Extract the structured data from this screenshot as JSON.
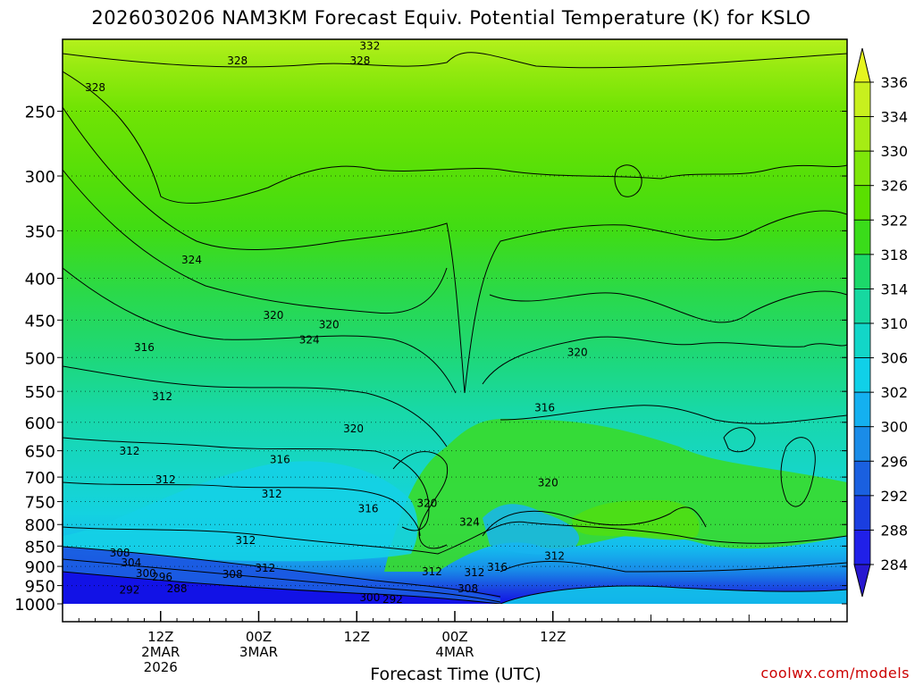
{
  "title": "2026030206 NAM3KM Forecast Equiv. Potential Temperature (K) for KSLO",
  "xlabel": "Forecast Time (UTC)",
  "credit": "coolwx.com/models",
  "colors": {
    "frame": "#000000",
    "ground": "#a0522d",
    "contour": "#000000",
    "grid": "#000000"
  },
  "chart_data": {
    "type": "heatmap",
    "title": "2026030206 NAM3KM Forecast Equiv. Potential Temperature (K) for KSLO",
    "xlabel": "Forecast Time (UTC)",
    "ylabel": "",
    "y_scale": "log-pressure",
    "y_range": [
      1000,
      200
    ],
    "y_ticks": [
      250,
      300,
      350,
      400,
      450,
      500,
      550,
      600,
      650,
      700,
      750,
      800,
      850,
      900,
      950,
      1000
    ],
    "x_range_hours": [
      6,
      54
    ],
    "x_ticks": [
      {
        "hour": 12,
        "lines": [
          "12Z",
          "2MAR",
          "2026"
        ]
      },
      {
        "hour": 18,
        "lines": [
          "00Z",
          "3MAR"
        ]
      },
      {
        "hour": 24,
        "lines": [
          "12Z"
        ]
      },
      {
        "hour": 30,
        "lines": [
          "00Z",
          "4MAR"
        ]
      },
      {
        "hour": 36,
        "lines": [
          "12Z"
        ]
      }
    ],
    "colorbar": {
      "labels": [
        336,
        334,
        330,
        326,
        322,
        318,
        314,
        310,
        306,
        302,
        300,
        296,
        292,
        288,
        284
      ],
      "colors": [
        "#e6f51f",
        "#c8f01e",
        "#a6ec14",
        "#7ee60a",
        "#5ae000",
        "#3adc1a",
        "#1cd86a",
        "#16d8a0",
        "#12d6c8",
        "#10d0e8",
        "#14b0f0",
        "#1a8ce8",
        "#1a60e0",
        "#1a3ee0",
        "#2020e8",
        "#2818d0"
      ]
    },
    "contour_labels": [
      {
        "text": "332",
        "hour": 24.8,
        "p": 208
      },
      {
        "text": "328",
        "hour": 16.7,
        "p": 217
      },
      {
        "text": "328",
        "hour": 24.2,
        "p": 217
      },
      {
        "text": "328",
        "hour": 8.0,
        "p": 234
      },
      {
        "text": "324",
        "hour": 13.9,
        "p": 380
      },
      {
        "text": "320",
        "hour": 18.9,
        "p": 444
      },
      {
        "text": "320",
        "hour": 22.3,
        "p": 456
      },
      {
        "text": "324",
        "hour": 21.1,
        "p": 476
      },
      {
        "text": "316",
        "hour": 11.0,
        "p": 486
      },
      {
        "text": "320",
        "hour": 37.5,
        "p": 493
      },
      {
        "text": "312",
        "hour": 12.1,
        "p": 558
      },
      {
        "text": "316",
        "hour": 35.5,
        "p": 576
      },
      {
        "text": "320",
        "hour": 23.8,
        "p": 611
      },
      {
        "text": "312",
        "hour": 10.1,
        "p": 651
      },
      {
        "text": "316",
        "hour": 19.3,
        "p": 666
      },
      {
        "text": "312",
        "hour": 12.3,
        "p": 705
      },
      {
        "text": "312",
        "hour": 18.8,
        "p": 734
      },
      {
        "text": "320",
        "hour": 35.7,
        "p": 711
      },
      {
        "text": "320",
        "hour": 28.3,
        "p": 754
      },
      {
        "text": "316",
        "hour": 24.7,
        "p": 765
      },
      {
        "text": "324",
        "hour": 30.9,
        "p": 795
      },
      {
        "text": "312",
        "hour": 17.2,
        "p": 837
      },
      {
        "text": "308",
        "hour": 9.5,
        "p": 867
      },
      {
        "text": "312",
        "hour": 36.1,
        "p": 874
      },
      {
        "text": "304",
        "hour": 10.2,
        "p": 891
      },
      {
        "text": "312",
        "hour": 18.4,
        "p": 904
      },
      {
        "text": "316",
        "hour": 32.6,
        "p": 902
      },
      {
        "text": "300",
        "hour": 11.1,
        "p": 918
      },
      {
        "text": "308",
        "hour": 16.4,
        "p": 920
      },
      {
        "text": "312",
        "hour": 28.6,
        "p": 914
      },
      {
        "text": "312",
        "hour": 31.2,
        "p": 916
      },
      {
        "text": "296",
        "hour": 12.1,
        "p": 927
      },
      {
        "text": "308",
        "hour": 30.8,
        "p": 958
      },
      {
        "text": "292",
        "hour": 10.1,
        "p": 962
      },
      {
        "text": "288",
        "hour": 13.0,
        "p": 958
      },
      {
        "text": "300",
        "hour": 24.8,
        "p": 982
      },
      {
        "text": "292",
        "hour": 26.2,
        "p": 987
      }
    ]
  }
}
